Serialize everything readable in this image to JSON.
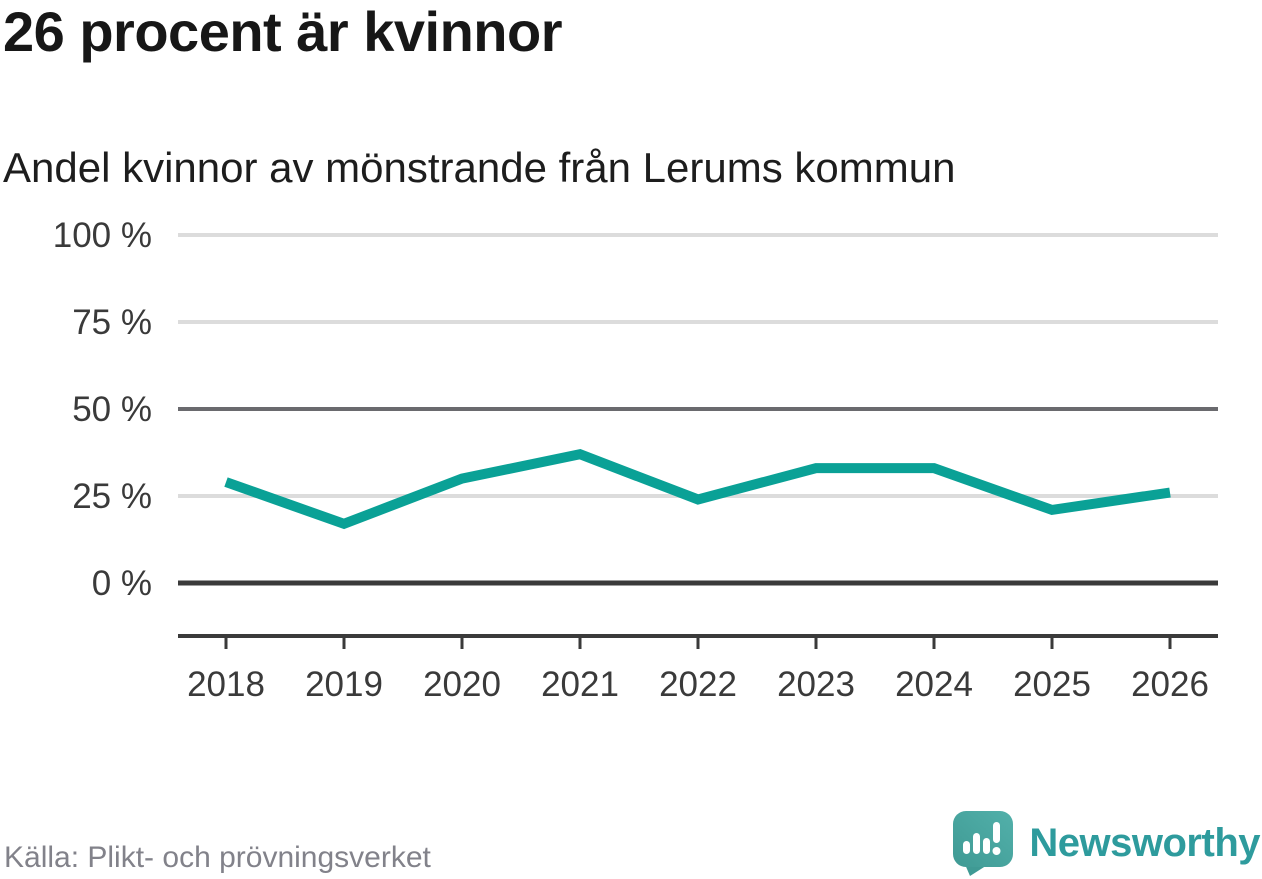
{
  "header": {
    "title": "26 procent är kvinnor",
    "subtitle": "Andel kvinnor av mönstrande från Lerums kommun"
  },
  "footer": {
    "source": "Källa: Plikt- och prövningsverket",
    "brand": "Newsworthy"
  },
  "icons": {
    "logo_mark": "newsworthy-speech-bubble-bar-chart-icon"
  },
  "colors": {
    "line": "#0aa196",
    "grid_light": "#dcdcdc",
    "grid_mid": "#6a6a6e",
    "axis": "#3a3a3a",
    "title_text": "#171717",
    "source_text": "#82828a",
    "brand_teal": "#2e9b9d",
    "logo_fill_light": "#52b0aa",
    "logo_fill_dark": "#3f9a94"
  },
  "chart_data": {
    "type": "line",
    "title": "26 procent är kvinnor",
    "subtitle": "Andel kvinnor av mönstrande från Lerums kommun",
    "source": "Källa: Plikt- och prövningsverket",
    "categories": [
      "2018",
      "2019",
      "2020",
      "2021",
      "2022",
      "2023",
      "2024",
      "2025",
      "2026"
    ],
    "series": [
      {
        "name": "Andel kvinnor av mönstrande",
        "values": [
          29,
          17,
          30,
          37,
          24,
          33,
          33,
          21,
          26
        ]
      }
    ],
    "unit": "%",
    "xlabel": "",
    "ylabel": "",
    "ylim": [
      0,
      100
    ],
    "yticks": [
      0,
      25,
      50,
      75,
      100
    ],
    "ytick_suffix": " %",
    "grid": true,
    "legend": false,
    "line_color": "#0aa196"
  }
}
